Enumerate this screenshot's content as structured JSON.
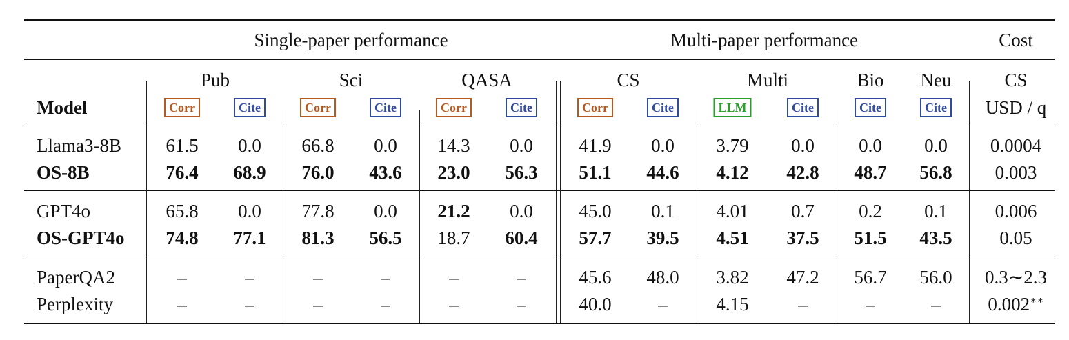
{
  "header": {
    "groups": {
      "single": "Single-paper performance",
      "multi": "Multi-paper performance",
      "cost": "Cost"
    },
    "model_label": "Model",
    "subgroups": {
      "pub": "Pub",
      "sci": "Sci",
      "qasa": "QASA",
      "cs": "CS",
      "multi": "Multi",
      "bio": "Bio",
      "neu": "Neu",
      "cost_cs": "CS",
      "cost_unit": "USD / q"
    },
    "badges": {
      "corr": "Corr",
      "cite": "Cite",
      "llm": "LLM"
    }
  },
  "rows": [
    {
      "model": "Llama3-8B",
      "bold_model": false,
      "cells": [
        "61.5",
        "0.0",
        "66.8",
        "0.0",
        "14.3",
        "0.0",
        "41.9",
        "0.0",
        "3.79",
        "0.0",
        "0.0",
        "0.0",
        "0.0004"
      ],
      "bold": [
        false,
        false,
        false,
        false,
        false,
        false,
        false,
        false,
        false,
        false,
        false,
        false,
        false
      ]
    },
    {
      "model": "OS-8B",
      "bold_model": true,
      "cells": [
        "76.4",
        "68.9",
        "76.0",
        "43.6",
        "23.0",
        "56.3",
        "51.1",
        "44.6",
        "4.12",
        "42.8",
        "48.7",
        "56.8",
        "0.003"
      ],
      "bold": [
        true,
        true,
        true,
        true,
        true,
        true,
        true,
        true,
        true,
        true,
        true,
        true,
        false
      ]
    },
    {
      "model": "GPT4o",
      "bold_model": false,
      "cells": [
        "65.8",
        "0.0",
        "77.8",
        "0.0",
        "21.2",
        "0.0",
        "45.0",
        "0.1",
        "4.01",
        "0.7",
        "0.2",
        "0.1",
        "0.006"
      ],
      "bold": [
        false,
        false,
        false,
        false,
        true,
        false,
        false,
        false,
        false,
        false,
        false,
        false,
        false
      ]
    },
    {
      "model": "OS-GPT4o",
      "bold_model": true,
      "cells": [
        "74.8",
        "77.1",
        "81.3",
        "56.5",
        "18.7",
        "60.4",
        "57.7",
        "39.5",
        "4.51",
        "37.5",
        "51.5",
        "43.5",
        "0.05"
      ],
      "bold": [
        true,
        true,
        true,
        true,
        false,
        true,
        true,
        true,
        true,
        true,
        true,
        true,
        false
      ]
    },
    {
      "model": "PaperQA2",
      "bold_model": false,
      "cells": [
        "–",
        "–",
        "–",
        "–",
        "–",
        "–",
        "45.6",
        "48.0",
        "3.82",
        "47.2",
        "56.7",
        "56.0",
        "0.3∼2.3"
      ],
      "bold": [
        false,
        false,
        false,
        false,
        false,
        false,
        false,
        false,
        false,
        false,
        false,
        false,
        false
      ]
    },
    {
      "model": "Perplexity",
      "bold_model": false,
      "cells": [
        "–",
        "–",
        "–",
        "–",
        "–",
        "–",
        "40.0",
        "–",
        "4.15",
        "–",
        "–",
        "–",
        "0.002"
      ],
      "cost_superscript": "∗∗",
      "bold": [
        false,
        false,
        false,
        false,
        false,
        false,
        false,
        false,
        false,
        false,
        false,
        false,
        false
      ]
    }
  ]
}
